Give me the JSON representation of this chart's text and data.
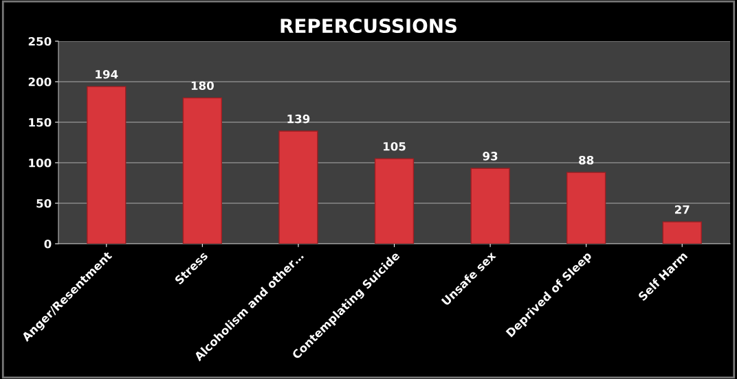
{
  "chart_data": {
    "type": "bar",
    "title": "REPERCUSSIONS",
    "categories": [
      "Anger/Resentment",
      "Stress",
      "Alcoholism and other…",
      "Contemplating Suicide",
      "Unsafe sex",
      "Deprived of Sleep",
      "Self Harm"
    ],
    "values": [
      194,
      180,
      139,
      105,
      93,
      88,
      27
    ],
    "color": "#d8363b",
    "ylim": [
      0,
      250
    ],
    "yticks": [
      0,
      50,
      100,
      150,
      200,
      250
    ],
    "grid": "y",
    "data_labels": true
  }
}
